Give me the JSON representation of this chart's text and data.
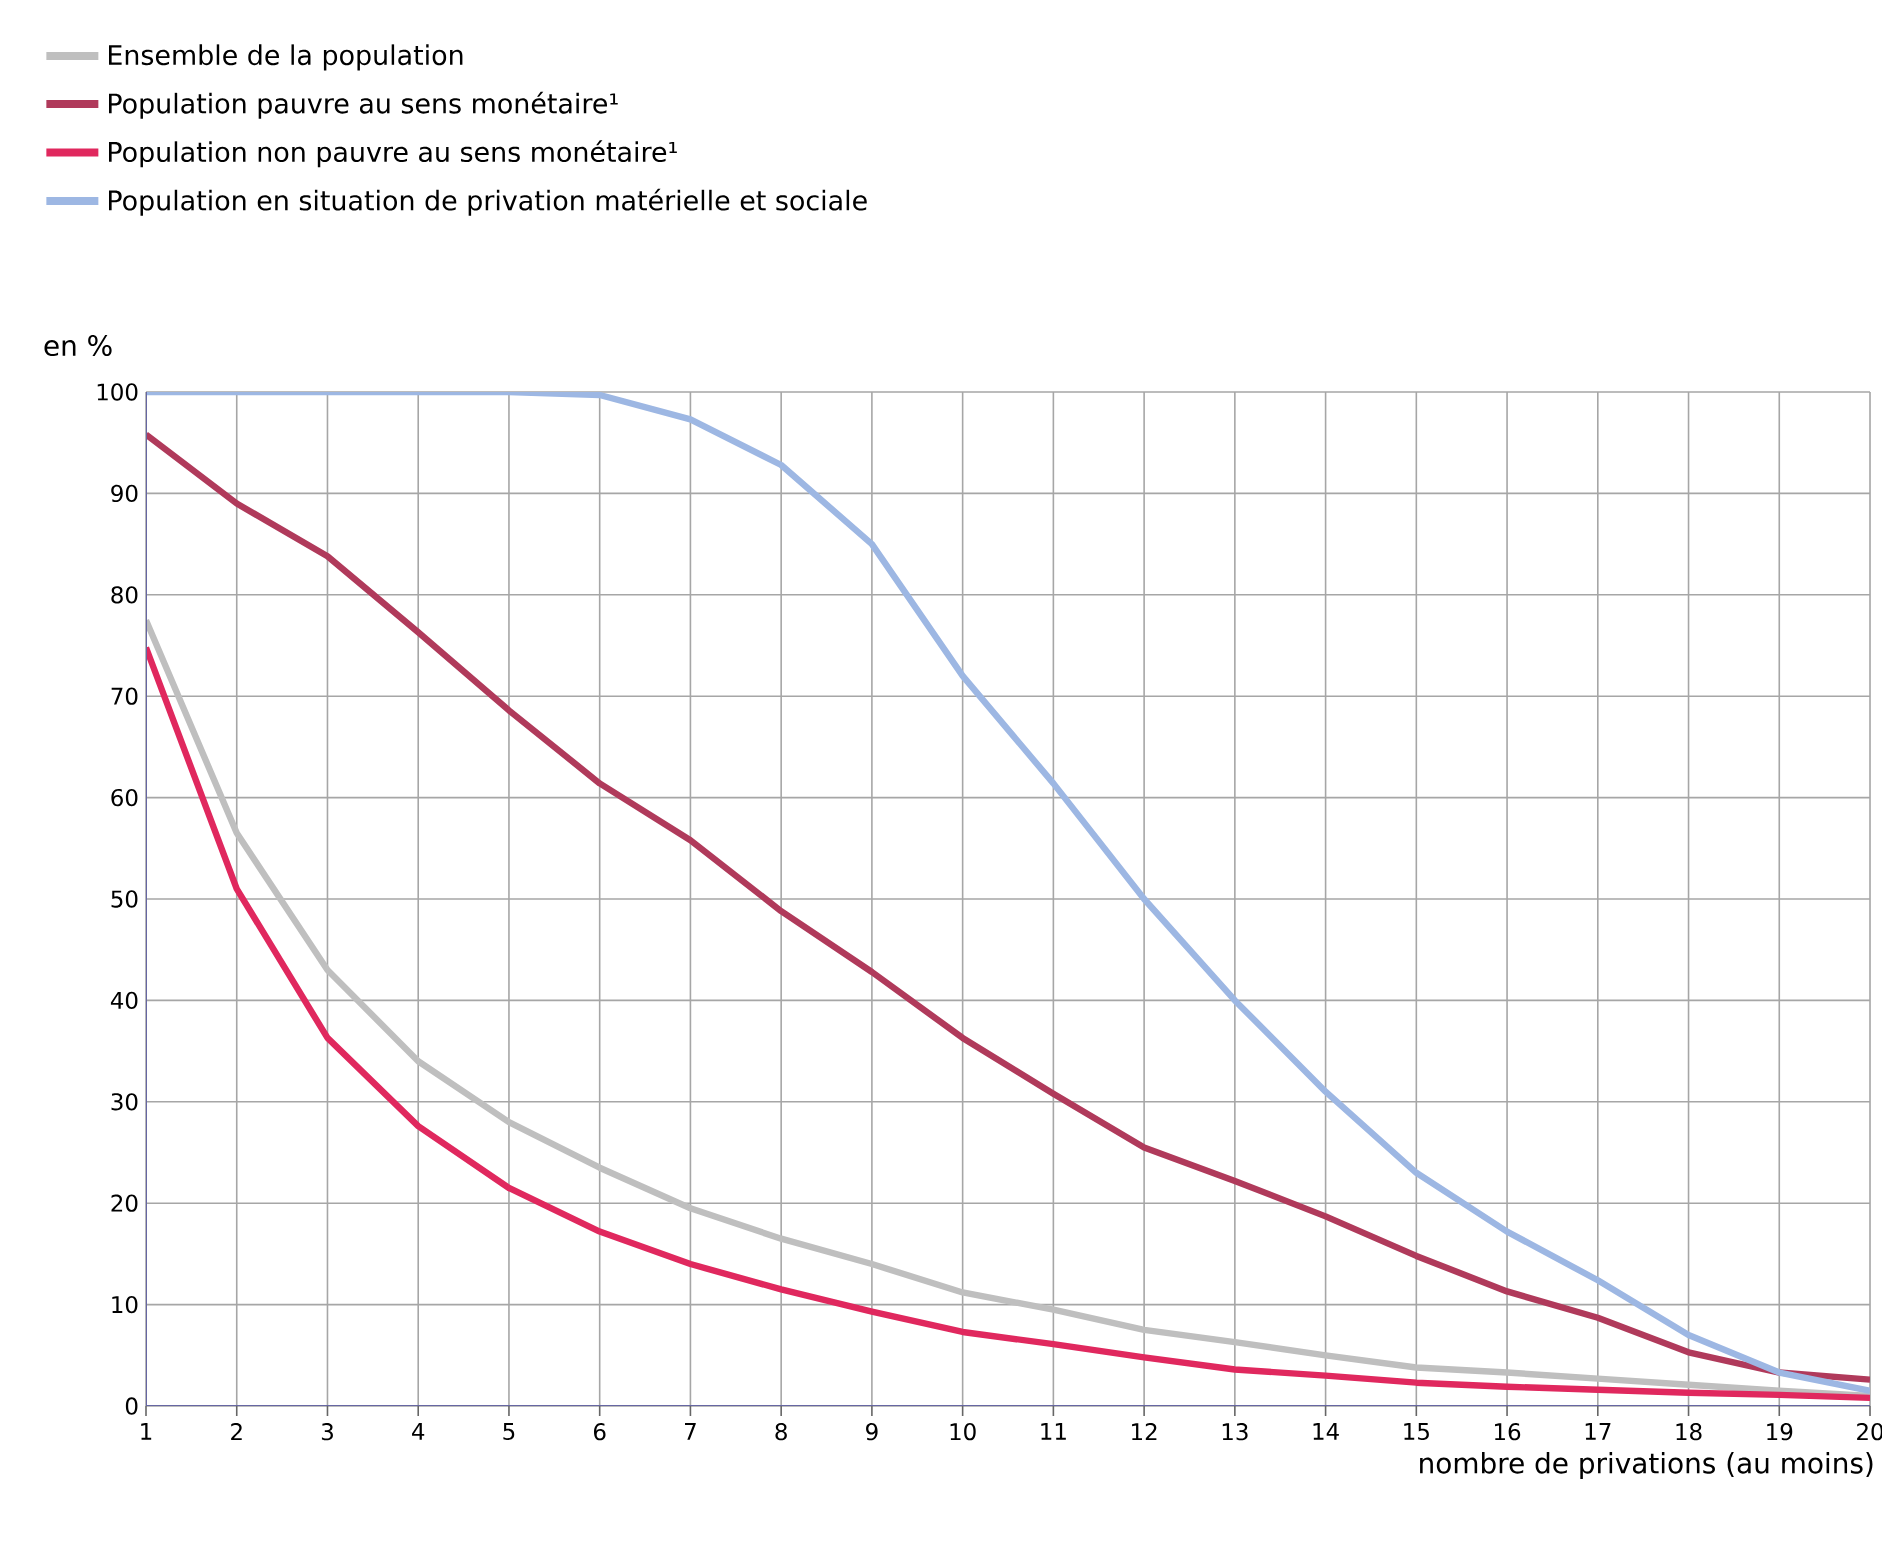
{
  "chart_data": {
    "type": "line",
    "x": [
      1,
      2,
      3,
      4,
      5,
      6,
      7,
      8,
      9,
      10,
      11,
      12,
      13,
      14,
      15,
      16,
      17,
      18,
      19,
      20
    ],
    "xlabel": "nombre de privations (au moins)",
    "ylabel": "en %",
    "xlim": [
      1,
      20
    ],
    "xticks": [
      1,
      2,
      3,
      4,
      5,
      6,
      7,
      8,
      9,
      10,
      11,
      12,
      13,
      14,
      15,
      16,
      17,
      18,
      19,
      20
    ],
    "ylim": [
      0,
      100
    ],
    "yticks": [
      0,
      10,
      20,
      30,
      40,
      50,
      60,
      70,
      80,
      90,
      100
    ],
    "grid": true,
    "legend": "top left",
    "series": [
      {
        "name": "Ensemble de la population",
        "color": "#bfbfbf",
        "values": [
          77.5,
          56.5,
          43,
          34,
          28,
          23.5,
          19.5,
          16.5,
          14,
          11.2,
          9.5,
          7.5,
          6.3,
          5,
          3.8,
          3.3,
          2.7,
          2.1,
          1.5,
          1.0
        ]
      },
      {
        "name": "Population pauvre au sens monétaire¹",
        "color": "#b03a5b",
        "values": [
          95.8,
          89,
          83.8,
          76.3,
          68.6,
          61.4,
          55.8,
          48.8,
          42.8,
          36.3,
          30.8,
          25.5,
          22.2,
          18.7,
          14.8,
          11.3,
          8.7,
          5.3,
          3.3,
          2.6
        ]
      },
      {
        "name": "Population non pauvre au sens monétaire¹",
        "color": "#e0285e",
        "values": [
          74.8,
          51,
          36.3,
          27.6,
          21.5,
          17.2,
          14,
          11.5,
          9.3,
          7.3,
          6.1,
          4.8,
          3.6,
          3.0,
          2.3,
          1.9,
          1.6,
          1.3,
          1.1,
          0.8
        ]
      },
      {
        "name": "Population en situation de privation matérielle et sociale",
        "color": "#9db7e3",
        "values": [
          100,
          100,
          100,
          100,
          100,
          99.7,
          97.3,
          92.8,
          85,
          72,
          61.4,
          50,
          40,
          31,
          23,
          17.2,
          12.4,
          7,
          3.3,
          1.5
        ]
      }
    ]
  }
}
